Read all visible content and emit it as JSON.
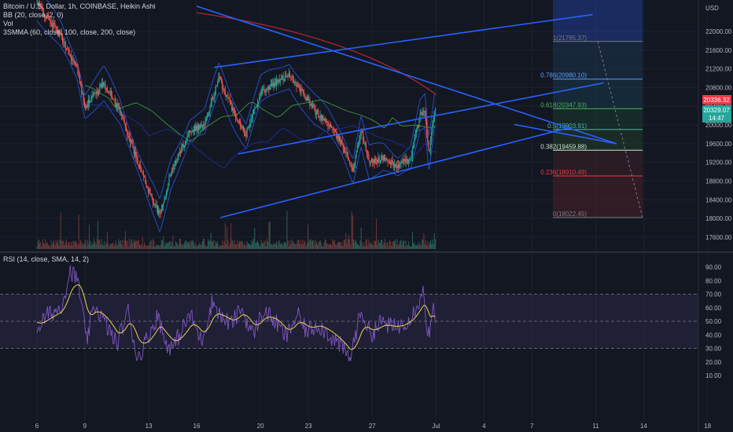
{
  "legend": {
    "title": "Bitcoin / U.S. Dollar, 1h, COINBASE, Heikin Ashi",
    "bb": "BB (20, close, 2, 0)",
    "vol": "Vol",
    "smma": "3SMMA (60, close, 100, close, 200, close)",
    "rsi": "RSI (14, close, SMA, 14, 2)"
  },
  "currency": "USD",
  "price_badges": {
    "price1": "20336.32",
    "price2": "20329.07",
    "countdown": "14:47"
  },
  "colors": {
    "background": "#131722",
    "up": "#26a69a",
    "down": "#ef5350",
    "trendline": "#2962ff",
    "rsi": "#7e57c2",
    "rsi_ma": "#e8d44d",
    "bb": "#2962ff",
    "smma_green": "#3a8a3a",
    "smma_red": "#b22833",
    "smma_blue": "#1e2a8a"
  },
  "chart_data": [
    {
      "type": "candlestick",
      "title": "Bitcoin / U.S. Dollar, 1h, COINBASE, Heikin Ashi",
      "x_tick_labels": [
        "6",
        "9",
        "13",
        "16",
        "20",
        "23",
        "27",
        "Jul",
        "4",
        "7",
        "11",
        "14",
        "18"
      ],
      "y_tick_labels": [
        "22000.00",
        "21600.00",
        "21200.00",
        "20800.00",
        "20400.00",
        "20000.00",
        "19600.00",
        "19200.00",
        "18800.00",
        "18400.00",
        "18000.00",
        "17600.00"
      ],
      "ylim": [
        17500,
        22400
      ],
      "key_prices": [
        {
          "x": 0.0,
          "y": 22600
        },
        {
          "x": 1.5,
          "y": 21900
        },
        {
          "x": 2.5,
          "y": 21200
        },
        {
          "x": 3.0,
          "y": 20400
        },
        {
          "x": 4.2,
          "y": 20900
        },
        {
          "x": 5.2,
          "y": 20300
        },
        {
          "x": 6.2,
          "y": 19300
        },
        {
          "x": 7.0,
          "y": 18600
        },
        {
          "x": 7.7,
          "y": 18050
        },
        {
          "x": 8.4,
          "y": 19000
        },
        {
          "x": 9.6,
          "y": 19900
        },
        {
          "x": 10.5,
          "y": 20000
        },
        {
          "x": 11.4,
          "y": 21000
        },
        {
          "x": 12.3,
          "y": 20300
        },
        {
          "x": 13.1,
          "y": 19800
        },
        {
          "x": 14.0,
          "y": 20700
        },
        {
          "x": 15.0,
          "y": 20900
        },
        {
          "x": 15.8,
          "y": 21100
        },
        {
          "x": 16.6,
          "y": 20700
        },
        {
          "x": 17.4,
          "y": 20300
        },
        {
          "x": 18.3,
          "y": 20000
        },
        {
          "x": 19.1,
          "y": 19600
        },
        {
          "x": 19.8,
          "y": 19050
        },
        {
          "x": 20.3,
          "y": 19900
        },
        {
          "x": 20.8,
          "y": 19200
        },
        {
          "x": 21.7,
          "y": 19300
        },
        {
          "x": 22.6,
          "y": 19100
        },
        {
          "x": 23.4,
          "y": 19300
        },
        {
          "x": 24.0,
          "y": 20200
        },
        {
          "x": 24.3,
          "y": 20300
        },
        {
          "x": 24.55,
          "y": 19350
        },
        {
          "x": 24.9,
          "y": 20330
        }
      ],
      "fib_levels": [
        {
          "ratio": "1",
          "label": "1(21785.37)",
          "price": 21785.37,
          "color": "#787b86"
        },
        {
          "ratio": "0.786",
          "label": "0.786(20980.10)",
          "price": 20980.1,
          "color": "#5b9cf6"
        },
        {
          "ratio": "0.618",
          "label": "0.618(20347.93)",
          "price": 20347.93,
          "color": "#4caf50"
        },
        {
          "ratio": "0.5",
          "label": "0.5(19903.91)",
          "price": 19903.91,
          "color": "#4db6ac"
        },
        {
          "ratio": "0.382",
          "label": "0.382(19459.88)",
          "price": 19459.88,
          "color": "#c8e6c9"
        },
        {
          "ratio": "0.236",
          "label": "0.236(18910.49)",
          "price": 18910.49,
          "color": "#f23645"
        },
        {
          "ratio": "0",
          "label": "0(18022.45)",
          "price": 18022.45,
          "color": "#787b86"
        }
      ]
    },
    {
      "type": "line",
      "title": "RSI (14, close, SMA, 14, 2)",
      "y_tick_labels": [
        "90.00",
        "80.00",
        "70.00",
        "60.00",
        "50.00",
        "40.00",
        "30.00",
        "20.00",
        "10.00"
      ],
      "ylim": [
        5,
        95
      ],
      "bands": {
        "upper": 70,
        "middle": 50,
        "lower": 30
      },
      "key_values": [
        {
          "x": 0.0,
          "y": 45
        },
        {
          "x": 0.7,
          "y": 55
        },
        {
          "x": 1.5,
          "y": 60
        },
        {
          "x": 2.1,
          "y": 88
        },
        {
          "x": 2.6,
          "y": 78
        },
        {
          "x": 3.1,
          "y": 35
        },
        {
          "x": 3.6,
          "y": 62
        },
        {
          "x": 4.2,
          "y": 50
        },
        {
          "x": 5.0,
          "y": 33
        },
        {
          "x": 5.7,
          "y": 58
        },
        {
          "x": 6.3,
          "y": 22
        },
        {
          "x": 7.0,
          "y": 40
        },
        {
          "x": 7.6,
          "y": 55
        },
        {
          "x": 8.0,
          "y": 35
        },
        {
          "x": 8.5,
          "y": 30
        },
        {
          "x": 9.0,
          "y": 42
        },
        {
          "x": 9.6,
          "y": 55
        },
        {
          "x": 10.3,
          "y": 35
        },
        {
          "x": 11.0,
          "y": 65
        },
        {
          "x": 11.6,
          "y": 52
        },
        {
          "x": 12.2,
          "y": 48
        },
        {
          "x": 12.8,
          "y": 60
        },
        {
          "x": 13.5,
          "y": 40
        },
        {
          "x": 14.2,
          "y": 58
        },
        {
          "x": 14.9,
          "y": 50
        },
        {
          "x": 15.6,
          "y": 38
        },
        {
          "x": 16.3,
          "y": 55
        },
        {
          "x": 16.9,
          "y": 42
        },
        {
          "x": 17.6,
          "y": 48
        },
        {
          "x": 18.3,
          "y": 40
        },
        {
          "x": 19.0,
          "y": 32
        },
        {
          "x": 19.6,
          "y": 22
        },
        {
          "x": 20.3,
          "y": 58
        },
        {
          "x": 20.9,
          "y": 40
        },
        {
          "x": 21.6,
          "y": 50
        },
        {
          "x": 22.3,
          "y": 45
        },
        {
          "x": 22.9,
          "y": 48
        },
        {
          "x": 23.5,
          "y": 55
        },
        {
          "x": 23.9,
          "y": 65
        },
        {
          "x": 24.2,
          "y": 72
        },
        {
          "x": 24.45,
          "y": 45
        },
        {
          "x": 24.6,
          "y": 38
        },
        {
          "x": 24.8,
          "y": 60
        },
        {
          "x": 24.95,
          "y": 47
        }
      ]
    }
  ]
}
